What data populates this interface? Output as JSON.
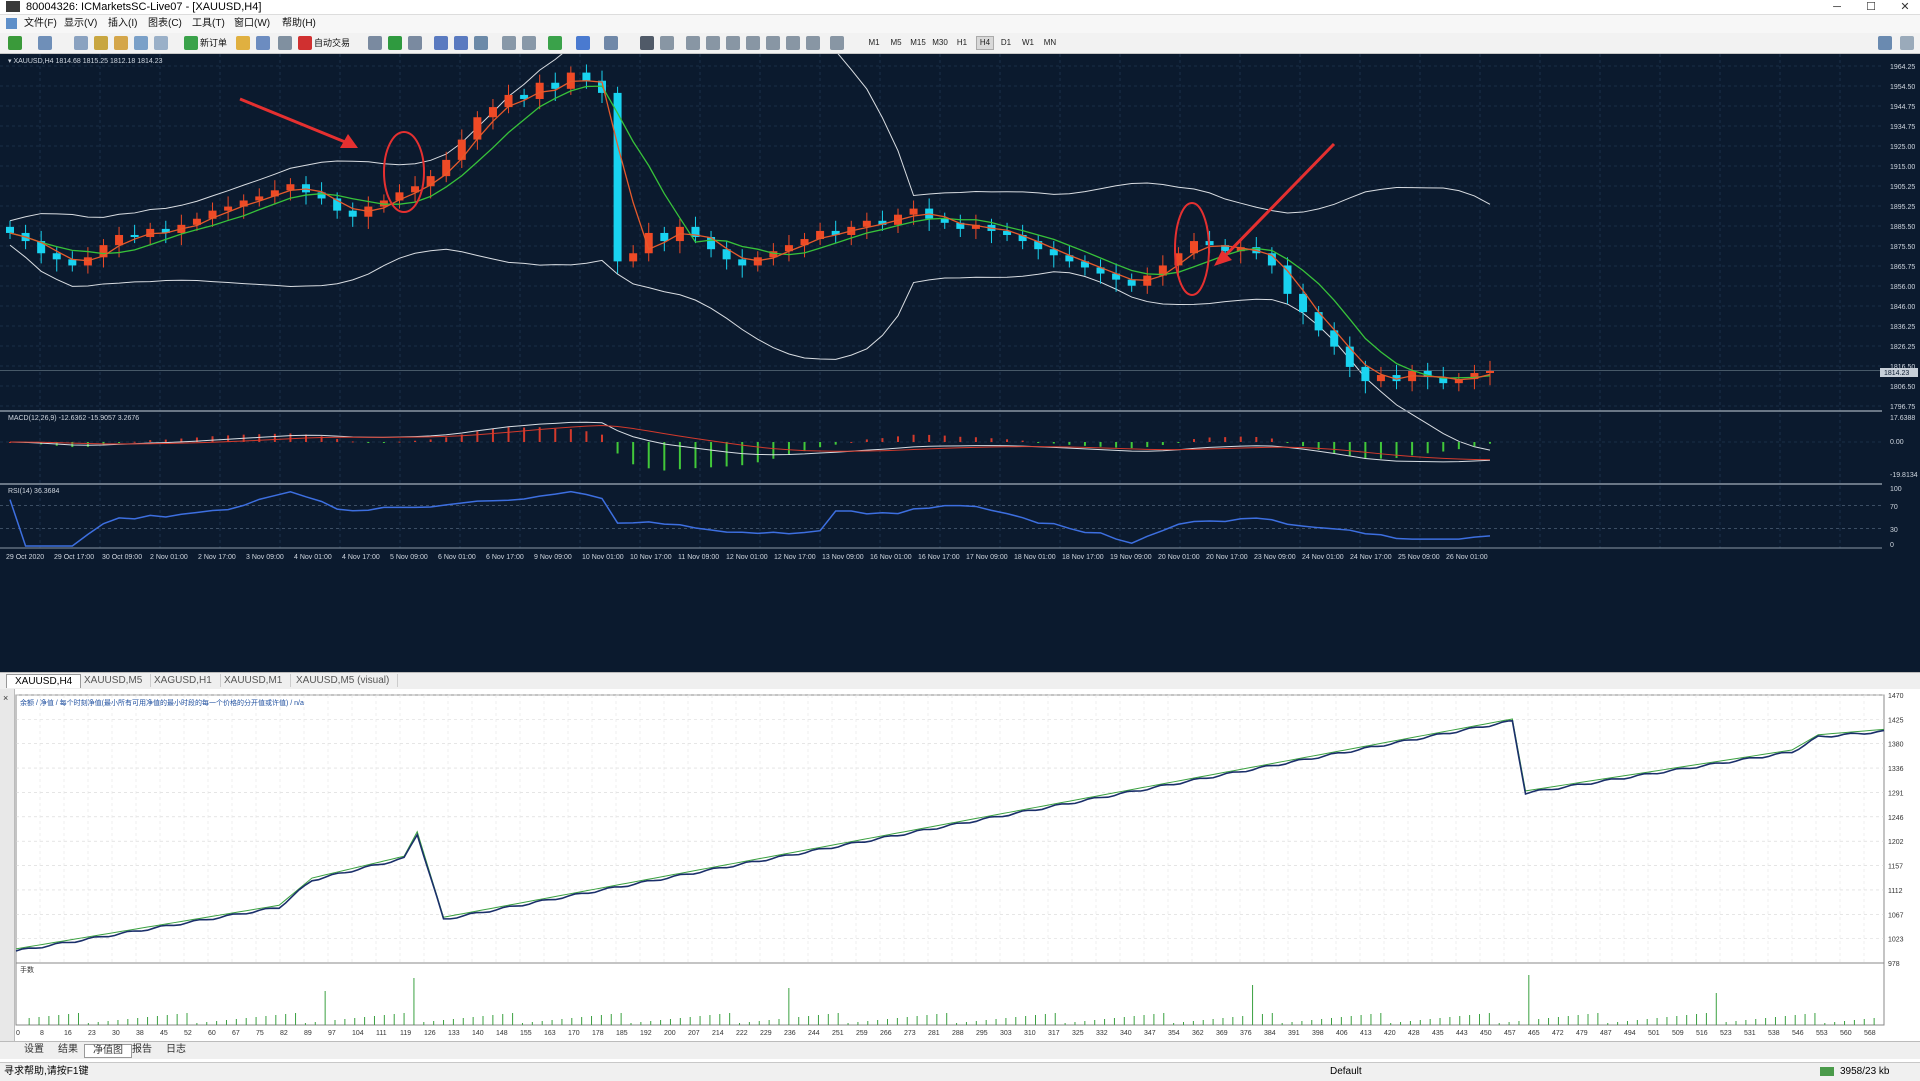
{
  "window": {
    "title": "80004326: ICMarketsSC-Live07 - [XAUUSD,H4]",
    "minimize": "─",
    "maximize": "☐",
    "close": "✕"
  },
  "menu": [
    "文件(F)",
    "显示(V)",
    "插入(I)",
    "图表(C)",
    "工具(T)",
    "窗口(W)",
    "帮助(H)"
  ],
  "toolbar": {
    "new_order": "新订单",
    "auto_trading": "自动交易",
    "timeframes": [
      "M1",
      "M5",
      "M15",
      "M30",
      "H1",
      "H4",
      "D1",
      "W1",
      "MN"
    ],
    "active_timeframe": "H4"
  },
  "chart": {
    "header": "▾ XAUUSD,H4  1814.68 1815.25 1812.18 1814.23",
    "price_labels": [
      "1964.25",
      "1954.50",
      "1944.75",
      "1934.75",
      "1925.00",
      "1915.00",
      "1905.25",
      "1895.25",
      "1885.50",
      "1875.50",
      "1865.75",
      "1856.00",
      "1846.00",
      "1836.25",
      "1826.25",
      "1816.50",
      "1806.50",
      "1796.75"
    ],
    "current_price": "1814.23",
    "macd_header": "MACD(12,26,9) -12.6362 -15.9057 3.2676",
    "macd_labels": [
      "17.6388",
      "0.00",
      "-19.8134"
    ],
    "rsi_header": "RSI(14) 36.3684",
    "rsi_labels": [
      "100",
      "70",
      "30",
      "0"
    ],
    "time_labels": [
      "29 Oct 2020",
      "29 Oct 17:00",
      "30 Oct 09:00",
      "2 Nov 01:00",
      "2 Nov 17:00",
      "3 Nov 09:00",
      "4 Nov 01:00",
      "4 Nov 17:00",
      "5 Nov 09:00",
      "6 Nov 01:00",
      "6 Nov 17:00",
      "9 Nov 09:00",
      "10 Nov 01:00",
      "10 Nov 17:00",
      "11 Nov 09:00",
      "12 Nov 01:00",
      "12 Nov 17:00",
      "13 Nov 09:00",
      "16 Nov 01:00",
      "16 Nov 17:00",
      "17 Nov 09:00",
      "18 Nov 01:00",
      "18 Nov 17:00",
      "19 Nov 09:00",
      "20 Nov 01:00",
      "20 Nov 17:00",
      "23 Nov 09:00",
      "24 Nov 01:00",
      "24 Nov 17:00",
      "25 Nov 09:00",
      "26 Nov 01:00"
    ],
    "candle_closes": [
      1882,
      1878,
      1872,
      1869,
      1866,
      1870,
      1876,
      1881,
      1880,
      1884,
      1882,
      1886,
      1889,
      1893,
      1895,
      1898,
      1900,
      1903,
      1906,
      1902,
      1899,
      1893,
      1890,
      1895,
      1898,
      1902,
      1905,
      1910,
      1918,
      1928,
      1939,
      1944,
      1950,
      1948,
      1956,
      1953,
      1961,
      1957,
      1951,
      1868,
      1872,
      1882,
      1878,
      1885,
      1880,
      1874,
      1869,
      1866,
      1870,
      1873,
      1876,
      1879,
      1883,
      1881,
      1885,
      1888,
      1886,
      1891,
      1894,
      1889,
      1887,
      1884,
      1886,
      1883,
      1881,
      1878,
      1874,
      1871,
      1868,
      1865,
      1862,
      1859,
      1856,
      1861,
      1866,
      1872,
      1878,
      1876,
      1873,
      1875,
      1872,
      1866,
      1852,
      1843,
      1834,
      1826,
      1816,
      1809,
      1812,
      1809,
      1814,
      1811,
      1808,
      1810,
      1813,
      1814
    ]
  },
  "tabs": [
    "XAUUSD,H4",
    "XAUUSD,M5",
    "XAGUSD,H1",
    "XAUUSD,M1",
    "XAUUSD,M5 (visual)"
  ],
  "tester": {
    "header": "余额 / 净值 / 每个时刻净值(最小所有可用净值的最小时段的每一个价格的分开值或许值) / n/a",
    "y_labels": [
      "1470",
      "1425",
      "1380",
      "1336",
      "1291",
      "1246",
      "1202",
      "1157",
      "1112",
      "1067",
      "1023",
      "978"
    ],
    "volume_label": "手数",
    "x_labels": [
      "0",
      "8",
      "16",
      "23",
      "30",
      "38",
      "45",
      "52",
      "60",
      "67",
      "75",
      "82",
      "89",
      "97",
      "104",
      "111",
      "119",
      "126",
      "133",
      "140",
      "148",
      "155",
      "163",
      "170",
      "178",
      "185",
      "192",
      "200",
      "207",
      "214",
      "222",
      "229",
      "236",
      "244",
      "251",
      "259",
      "266",
      "273",
      "281",
      "288",
      "295",
      "303",
      "310",
      "317",
      "325",
      "332",
      "340",
      "347",
      "354",
      "362",
      "369",
      "376",
      "384",
      "391",
      "398",
      "406",
      "413",
      "420",
      "428",
      "435",
      "443",
      "450",
      "457",
      "465",
      "472",
      "479",
      "487",
      "494",
      "501",
      "509",
      "516",
      "523",
      "531",
      "538",
      "546",
      "553",
      "560",
      "568"
    ],
    "bottom_tabs": [
      "设置",
      "结果",
      "净值图",
      "报告",
      "日志"
    ],
    "active_bottom_tab": "净值图"
  },
  "status": {
    "help": "寻求帮助,请按F1键",
    "profile": "Default",
    "traffic": "3958/23 kb"
  },
  "colors": {
    "bull": "#ef4a26",
    "bear": "#19d3f0",
    "chart_bg": "#0b1a2e",
    "ma_fast": "#e55a2c",
    "ma_slow": "#37c23a"
  }
}
